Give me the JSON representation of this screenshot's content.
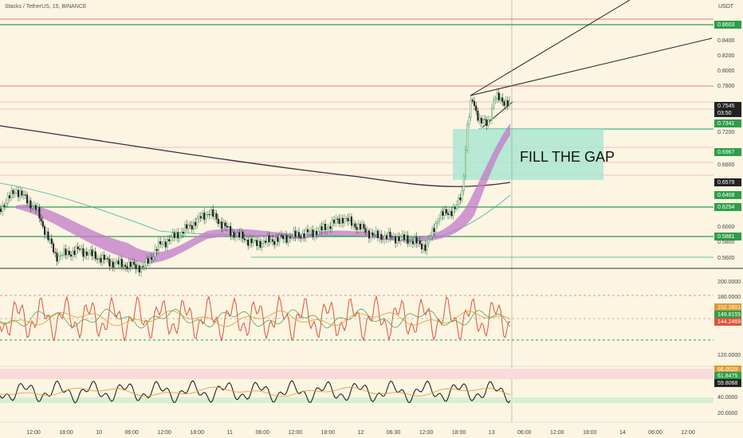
{
  "header": {
    "title": "Stacks / TetherUS, 15, BINANCE",
    "currency": "USDT"
  },
  "annotation": "FILL THE GAP",
  "price_axis": [
    "0.8603",
    "0.8400",
    "0.8200",
    "0.8000",
    "0.7800",
    "0.7545",
    "03:50",
    "0.7341",
    "0.7200",
    "0.6967",
    "0.6800",
    "0.6579",
    "0.6408",
    "0.6254",
    "0.6000",
    "0.5881",
    "0.5800",
    "0.5600"
  ],
  "indicator_1_axis": [
    "200.0000",
    "180.0000",
    "152.2601",
    "149.8155",
    "144.2469",
    "120.0000"
  ],
  "indicator_2_axis": [
    "66.0029",
    "61.8475",
    "59.8068",
    "40.0000",
    "20.0000"
  ],
  "time_axis": [
    "12:00",
    "18:00",
    "10",
    "06:00",
    "12:00",
    "18:00",
    "11",
    "06:00",
    "12:00",
    "18:00",
    "12",
    "06:30",
    "12:00",
    "18:00",
    "13",
    "06:00",
    "12:00",
    "18:00",
    "14",
    "06:00",
    "12:00"
  ]
}
